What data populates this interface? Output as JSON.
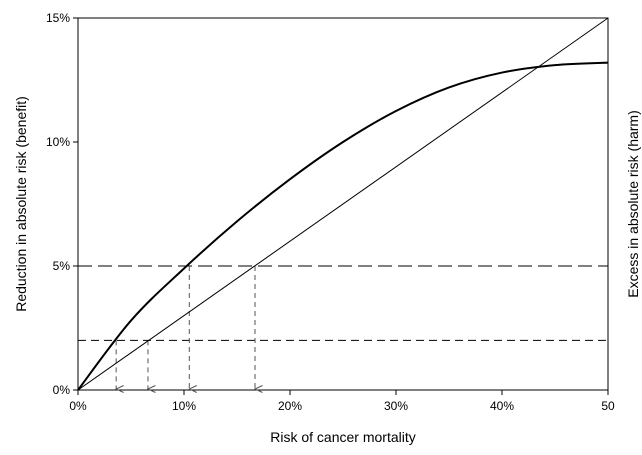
{
  "chart_data": {
    "type": "line",
    "title": "",
    "xlabel": "Risk of cancer mortality",
    "ylabel": "Reduction in absolute risk (benefit)",
    "ylabel_right": "Excess in absolute risk (harm)",
    "xlim": [
      0,
      50
    ],
    "ylim": [
      0,
      15
    ],
    "x_ticks": [
      0,
      10,
      20,
      30,
      40,
      50
    ],
    "x_tick_labels": [
      "0%",
      "10%",
      "20%",
      "30%",
      "40%",
      "50"
    ],
    "y_ticks": [
      0,
      5,
      10,
      15
    ],
    "y_tick_labels": [
      "0%",
      "5%",
      "10%",
      "15%"
    ],
    "grid": false,
    "series": [
      {
        "style": "thick-solid",
        "x": [
          0,
          5,
          10,
          15,
          20,
          25,
          30,
          35,
          40,
          45,
          50
        ],
        "y": [
          0,
          2.8,
          4.9,
          6.8,
          8.5,
          10.0,
          11.25,
          12.2,
          12.8,
          13.1,
          13.2
        ]
      },
      {
        "style": "thin-solid",
        "x": [
          0,
          50
        ],
        "y": [
          0,
          15
        ]
      }
    ],
    "reference_lines": [
      {
        "orientation": "horizontal",
        "y": 5,
        "style": "long-dash"
      },
      {
        "orientation": "horizontal",
        "y": 2,
        "style": "dash"
      }
    ],
    "drop_arrows": [
      {
        "x": 3.6,
        "y": 2
      },
      {
        "x": 6.6,
        "y": 2
      },
      {
        "x": 10.5,
        "y": 5
      },
      {
        "x": 16.7,
        "y": 5
      }
    ]
  }
}
